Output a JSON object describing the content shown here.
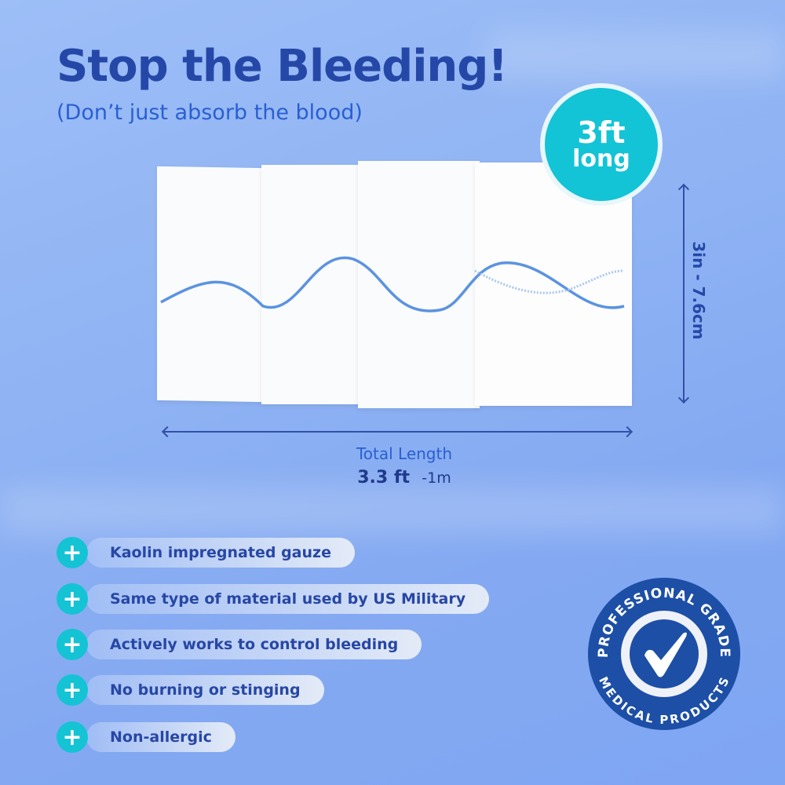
{
  "headline": "Stop the Bleeding!",
  "subheadline": "(Don’t just absorb the blood)",
  "length_badge": {
    "line1": "3ft",
    "line2": "long"
  },
  "dimensions": {
    "width_label": "3in - 7.6cm",
    "length_title": "Total Length",
    "length_value": "3.3 ft",
    "length_metric": "-1m"
  },
  "features": [
    {
      "icon": "plus-icon",
      "label": "Kaolin impregnated gauze"
    },
    {
      "icon": "plus-icon",
      "label": "Same type of material used by US Military"
    },
    {
      "icon": "plus-icon",
      "label": "Actively works to control bleeding"
    },
    {
      "icon": "plus-icon",
      "label": "No burning or stinging"
    },
    {
      "icon": "plus-icon",
      "label": "Non-allergic"
    }
  ],
  "seal": {
    "top_text": "PROFESSIONAL GRADE",
    "bottom_text": "MEDICAL PRODUCTS",
    "icon": "checkmark-icon"
  },
  "colors": {
    "navy": "#2548a8",
    "teal": "#14c3d4",
    "seal": "#1d4fa6"
  }
}
